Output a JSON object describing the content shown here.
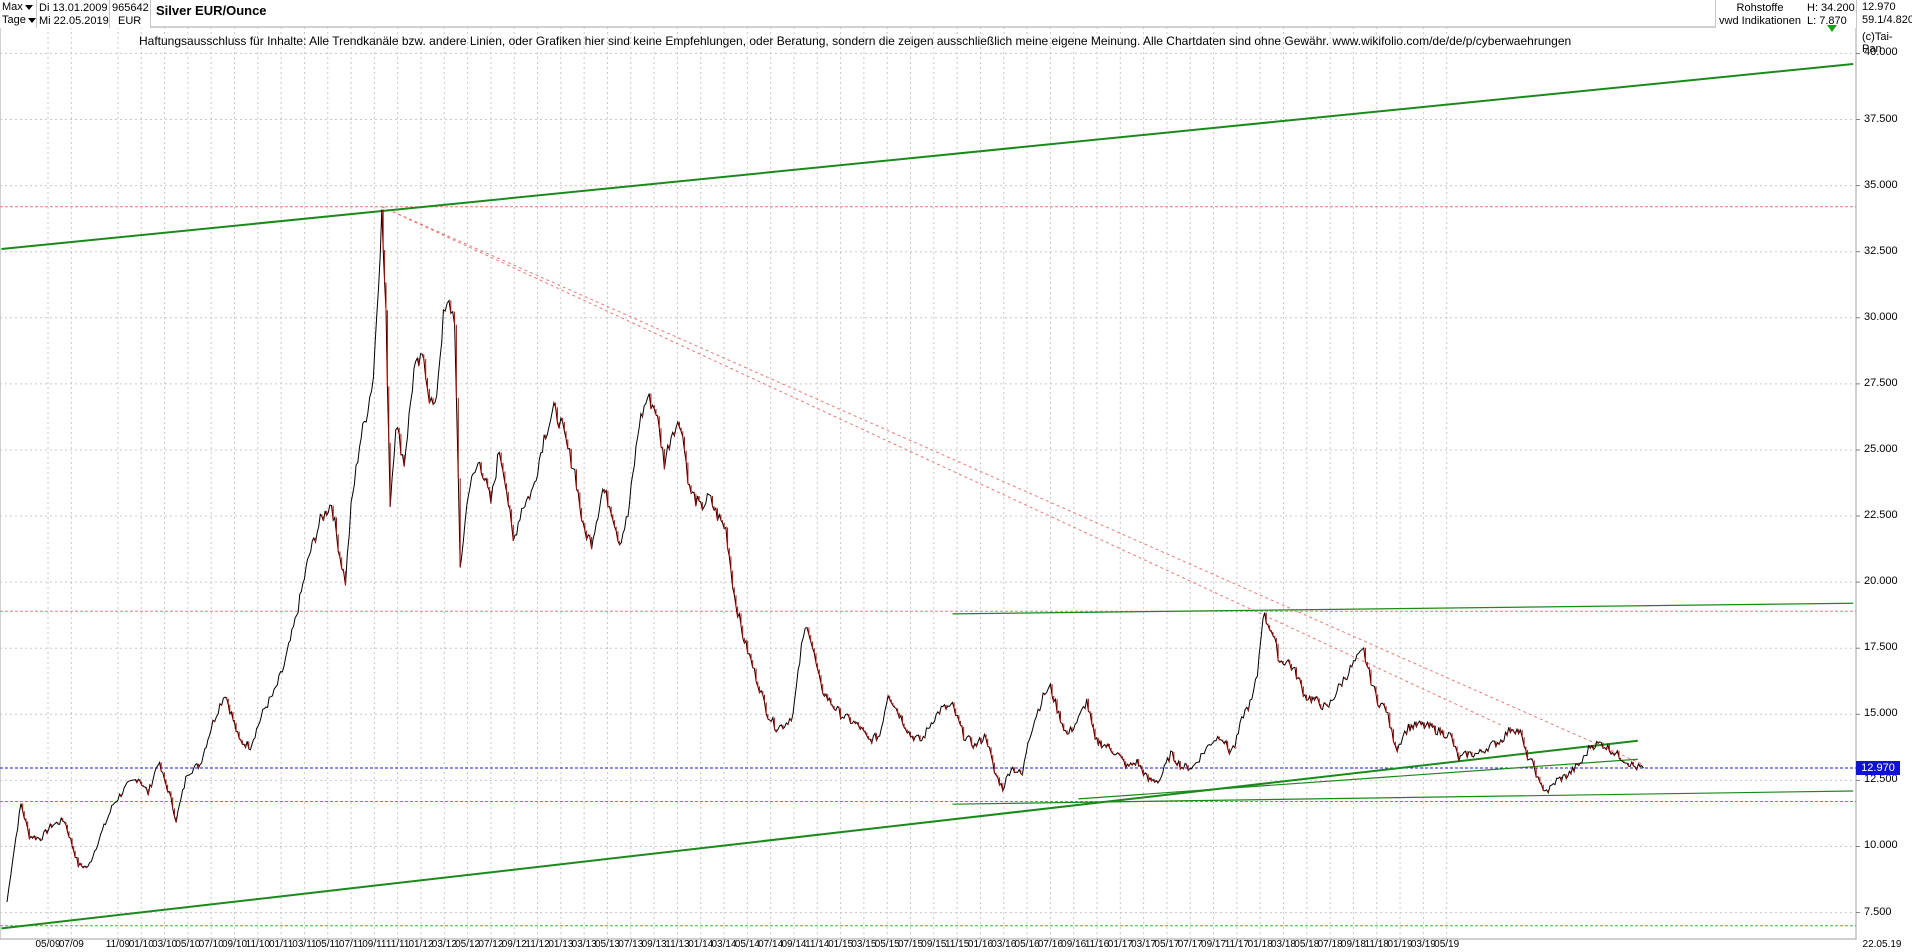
{
  "header": {
    "range_select": "Max",
    "interval_select": "Tage",
    "date_from": "Di 13.01.2009",
    "date_to": "Mi 22.05.2019",
    "wkn": "965642",
    "currency": "EUR",
    "instrument_title": "Silver EUR/Ounce",
    "category": "Rohstoffe",
    "source": "vwd Indikationen",
    "high_label": "H: 34.200",
    "low_label": "L: 7.870",
    "last_value": "12.970",
    "change_value": "59.1/4.820",
    "copyright": "(c)Tai-Pan"
  },
  "disclaimer": "Haftungsausschluss für Inhalte: Alle Trendkanäle bzw. andere Linien, oder Grafiken hier sind keine Empfehlungen, oder Beratung, sondern die zeigen ausschließlich meine eigene Meinung. Alle Chartdaten sind ohne Gewähr.  www.wikifolio.com/de/de/p/cyberwaehrungen",
  "chart_data": {
    "type": "line",
    "title": "Silver EUR/Ounce",
    "ylim": [
      6.5,
      41.0
    ],
    "y_ticks": [
      "7.500",
      "10.000",
      "12.500",
      "15.000",
      "17.500",
      "20.000",
      "22.500",
      "25.000",
      "27.500",
      "30.000",
      "32.500",
      "35.000",
      "37.500",
      "40.000"
    ],
    "x_ticks": [
      "05/09",
      "07/09",
      "11/09",
      "01/10",
      "03/10",
      "05/10",
      "07/10",
      "09/10",
      "11/10",
      "01/11",
      "03/11",
      "05/11",
      "07/11",
      "09/11",
      "11/11",
      "01/12",
      "03/12",
      "05/12",
      "07/12",
      "09/12",
      "11/12",
      "01/13",
      "03/13",
      "05/13",
      "07/13",
      "09/13",
      "11/13",
      "01/14",
      "03/14",
      "05/14",
      "07/14",
      "09/14",
      "11/14",
      "01/15",
      "03/15",
      "05/15",
      "07/15",
      "09/15",
      "11/15",
      "01/16",
      "03/16",
      "05/16",
      "07/16",
      "09/16",
      "11/16",
      "01/17",
      "03/17",
      "05/17",
      "07/17",
      "09/17",
      "11/17",
      "01/18",
      "03/18",
      "05/18",
      "07/18",
      "09/18",
      "11/18",
      "01/19",
      "03/19",
      "05/19"
    ],
    "last_date_label": "22.05.19",
    "grid": true,
    "last_price": 12.97,
    "last_price_label": "12.970",
    "price_series": {
      "name": "",
      "color": "#000000",
      "down_color": "#d00000",
      "points": [
        [
          2009.04,
          7.9
        ],
        [
          2009.08,
          9.5
        ],
        [
          2009.14,
          11.6
        ],
        [
          2009.2,
          10.4
        ],
        [
          2009.28,
          10.3
        ],
        [
          2009.36,
          10.8
        ],
        [
          2009.45,
          11.0
        ],
        [
          2009.55,
          9.3
        ],
        [
          2009.62,
          9.2
        ],
        [
          2009.7,
          10.3
        ],
        [
          2009.8,
          11.6
        ],
        [
          2009.9,
          12.3
        ],
        [
          2009.98,
          12.6
        ],
        [
          2010.05,
          12.0
        ],
        [
          2010.12,
          13.2
        ],
        [
          2010.2,
          12.0
        ],
        [
          2010.25,
          11.0
        ],
        [
          2010.33,
          12.8
        ],
        [
          2010.42,
          13.1
        ],
        [
          2010.5,
          14.5
        ],
        [
          2010.55,
          15.2
        ],
        [
          2010.6,
          15.8
        ],
        [
          2010.7,
          14.0
        ],
        [
          2010.78,
          13.8
        ],
        [
          2010.88,
          15.2
        ],
        [
          2010.95,
          15.8
        ],
        [
          2011.02,
          16.8
        ],
        [
          2011.1,
          18.5
        ],
        [
          2011.2,
          21.0
        ],
        [
          2011.28,
          22.3
        ],
        [
          2011.36,
          23.0
        ],
        [
          2011.42,
          21.0
        ],
        [
          2011.46,
          20.0
        ],
        [
          2011.5,
          22.8
        ],
        [
          2011.56,
          25.2
        ],
        [
          2011.62,
          26.6
        ],
        [
          2011.66,
          27.8
        ],
        [
          2011.72,
          33.9
        ],
        [
          2011.75,
          30.0
        ],
        [
          2011.78,
          23.0
        ],
        [
          2011.82,
          26.0
        ],
        [
          2011.88,
          24.5
        ],
        [
          2011.95,
          28.0
        ],
        [
          2012.02,
          28.5
        ],
        [
          2012.06,
          27.0
        ],
        [
          2012.1,
          26.5
        ],
        [
          2012.16,
          30.0
        ],
        [
          2012.2,
          30.5
        ],
        [
          2012.24,
          30.0
        ],
        [
          2012.28,
          20.5
        ],
        [
          2012.34,
          23.5
        ],
        [
          2012.42,
          24.6
        ],
        [
          2012.5,
          23.0
        ],
        [
          2012.56,
          25.0
        ],
        [
          2012.6,
          24.0
        ],
        [
          2012.66,
          21.5
        ],
        [
          2012.72,
          22.8
        ],
        [
          2012.8,
          23.5
        ],
        [
          2012.88,
          25.5
        ],
        [
          2012.95,
          26.5
        ],
        [
          2013.0,
          26.0
        ],
        [
          2013.05,
          25.0
        ],
        [
          2013.1,
          24.2
        ],
        [
          2013.16,
          22.0
        ],
        [
          2013.22,
          21.5
        ],
        [
          2013.3,
          23.5
        ],
        [
          2013.36,
          22.8
        ],
        [
          2013.42,
          21.5
        ],
        [
          2013.48,
          22.5
        ],
        [
          2013.56,
          26.0
        ],
        [
          2013.62,
          27.0
        ],
        [
          2013.68,
          26.5
        ],
        [
          2013.74,
          24.5
        ],
        [
          2013.8,
          25.8
        ],
        [
          2013.86,
          26.0
        ],
        [
          2013.92,
          23.5
        ],
        [
          2014.0,
          22.8
        ],
        [
          2014.06,
          23.2
        ],
        [
          2014.12,
          22.5
        ],
        [
          2014.18,
          22.0
        ],
        [
          2014.24,
          19.5
        ],
        [
          2014.3,
          18.0
        ],
        [
          2014.36,
          17.0
        ],
        [
          2014.42,
          16.0
        ],
        [
          2014.48,
          15.0
        ],
        [
          2014.54,
          14.5
        ],
        [
          2014.6,
          14.6
        ],
        [
          2014.66,
          15.0
        ],
        [
          2014.72,
          17.5
        ],
        [
          2014.76,
          18.5
        ],
        [
          2014.8,
          17.5
        ],
        [
          2014.86,
          16.0
        ],
        [
          2014.92,
          15.5
        ],
        [
          2015.0,
          15.0
        ],
        [
          2015.06,
          14.8
        ],
        [
          2015.14,
          14.5
        ],
        [
          2015.2,
          14.0
        ],
        [
          2015.28,
          14.2
        ],
        [
          2015.34,
          15.8
        ],
        [
          2015.42,
          15.0
        ],
        [
          2015.5,
          14.2
        ],
        [
          2015.58,
          14.0
        ],
        [
          2015.66,
          14.8
        ],
        [
          2015.72,
          15.2
        ],
        [
          2015.8,
          15.3
        ],
        [
          2015.88,
          14.2
        ],
        [
          2015.96,
          13.8
        ],
        [
          2016.04,
          14.2
        ],
        [
          2016.1,
          12.8
        ],
        [
          2016.16,
          12.2
        ],
        [
          2016.22,
          13.0
        ],
        [
          2016.3,
          12.7
        ],
        [
          2016.34,
          14.0
        ],
        [
          2016.4,
          15.0
        ],
        [
          2016.46,
          15.8
        ],
        [
          2016.5,
          16.0
        ],
        [
          2016.56,
          15.0
        ],
        [
          2016.62,
          14.2
        ],
        [
          2016.7,
          14.8
        ],
        [
          2016.76,
          15.5
        ],
        [
          2016.82,
          14.0
        ],
        [
          2016.9,
          13.8
        ],
        [
          2016.98,
          13.5
        ],
        [
          2017.05,
          13.0
        ],
        [
          2017.12,
          13.2
        ],
        [
          2017.2,
          12.5
        ],
        [
          2017.28,
          12.5
        ],
        [
          2017.36,
          13.5
        ],
        [
          2017.44,
          13.0
        ],
        [
          2017.52,
          13.0
        ],
        [
          2017.6,
          13.6
        ],
        [
          2017.66,
          14.0
        ],
        [
          2017.72,
          14.2
        ],
        [
          2017.78,
          13.6
        ],
        [
          2017.82,
          13.8
        ],
        [
          2017.88,
          15.0
        ],
        [
          2017.94,
          15.5
        ],
        [
          2017.98,
          16.5
        ],
        [
          2018.02,
          18.8
        ],
        [
          2018.08,
          18.2
        ],
        [
          2018.14,
          17.0
        ],
        [
          2018.2,
          17.0
        ],
        [
          2018.26,
          16.5
        ],
        [
          2018.32,
          15.7
        ],
        [
          2018.4,
          15.5
        ],
        [
          2018.48,
          15.2
        ],
        [
          2018.56,
          16.0
        ],
        [
          2018.62,
          16.5
        ],
        [
          2018.68,
          17.0
        ],
        [
          2018.74,
          17.4
        ],
        [
          2018.78,
          16.5
        ],
        [
          2018.84,
          15.5
        ],
        [
          2018.9,
          15.2
        ],
        [
          2018.94,
          14.3
        ],
        [
          2018.98,
          13.7
        ],
        [
          2019.02,
          14.2
        ],
        [
          2019.06,
          14.5
        ],
        [
          2019.14,
          14.6
        ],
        [
          2019.22,
          14.5
        ],
        [
          2019.3,
          14.3
        ],
        [
          2019.36,
          14.2
        ],
        [
          2019.42,
          13.3
        ],
        [
          2019.48,
          13.5
        ],
        [
          2019.56,
          13.5
        ],
        [
          2019.64,
          13.8
        ],
        [
          2019.72,
          14.0
        ],
        [
          2019.8,
          14.5
        ],
        [
          2019.86,
          14.3
        ],
        [
          2019.9,
          13.5
        ],
        [
          2019.96,
          13.0
        ],
        [
          2020.0,
          12.3
        ],
        [
          2020.06,
          12.1
        ],
        [
          2020.12,
          12.5
        ],
        [
          2020.2,
          12.7
        ],
        [
          2020.3,
          13.2
        ],
        [
          2020.36,
          13.8
        ],
        [
          2020.44,
          13.9
        ],
        [
          2020.52,
          13.6
        ],
        [
          2020.6,
          13.3
        ],
        [
          2020.68,
          13.0
        ],
        [
          2020.74,
          12.97
        ]
      ]
    },
    "annotations": {
      "trendlines_thick": [
        {
          "color": "#1a8a1a",
          "p1": [
            2009.0,
            32.6
          ],
          "p2": [
            2022.24,
            39.6
          ]
        },
        {
          "color": "#1a8a1a",
          "p1": [
            2009.0,
            6.9
          ],
          "p2": [
            2020.7,
            14.0
          ]
        }
      ],
      "trendlines_thin": [
        {
          "color": "#1a8a1a",
          "p1": [
            2015.8,
            18.8
          ],
          "p2": [
            2022.24,
            19.2
          ]
        },
        {
          "color": "#1a8a1a",
          "p1": [
            2015.8,
            11.6
          ],
          "p2": [
            2022.24,
            12.1
          ]
        },
        {
          "color": "#1a8a1a",
          "p1": [
            2016.7,
            11.8
          ],
          "p2": [
            2020.7,
            13.3
          ]
        }
      ],
      "trendlines_dashed": [
        {
          "color": "#e87a7a",
          "p1": [
            2011.72,
            34.2
          ],
          "p2": [
            2019.72,
            14.6
          ]
        },
        {
          "color": "#e87a7a",
          "p1": [
            2011.72,
            34.2
          ],
          "p2": [
            2020.74,
            13.1
          ]
        }
      ],
      "horizontal_dashed": [
        {
          "value": 34.2,
          "color": "#e87a7a"
        },
        {
          "value": 18.9,
          "color": "#e87a7a"
        },
        {
          "value": 12.97,
          "color": "#1a1ad8"
        },
        {
          "value": 11.7,
          "color": "#2ec22e"
        },
        {
          "value": 7.0,
          "color": "#2ec22e"
        }
      ]
    }
  }
}
